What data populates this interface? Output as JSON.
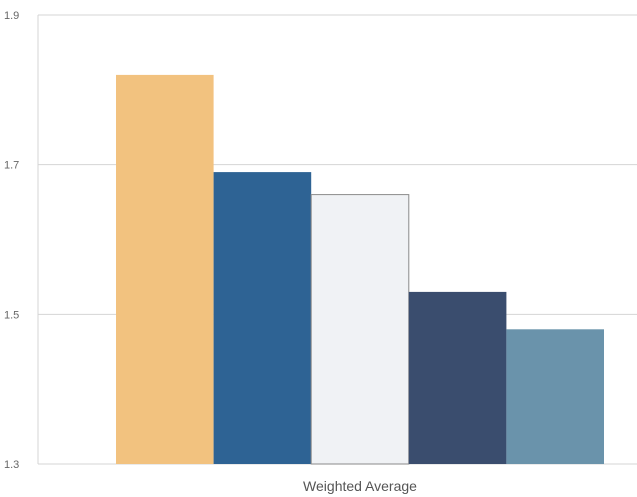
{
  "chart_data": {
    "type": "bar",
    "categories": [
      "Weighted Average"
    ],
    "series": [
      {
        "values": [
          1.82
        ],
        "color": "#f2c27f"
      },
      {
        "values": [
          1.69
        ],
        "color": "#2e6394"
      },
      {
        "values": [
          1.66
        ],
        "color": "#f0f2f5"
      },
      {
        "values": [
          1.53
        ],
        "color": "#3a4d6e"
      },
      {
        "values": [
          1.48
        ],
        "color": "#6a93ab"
      }
    ],
    "title": "",
    "xlabel": "",
    "ylabel": "",
    "ylim": [
      1.3,
      1.9
    ],
    "yticks": [
      {
        "value": 1.3,
        "label": "1.3"
      },
      {
        "value": 1.5,
        "label": "1.5"
      },
      {
        "value": 1.7,
        "label": "1.7"
      },
      {
        "value": 1.9,
        "label": "1.9"
      }
    ],
    "grid": true,
    "legend": "none"
  }
}
